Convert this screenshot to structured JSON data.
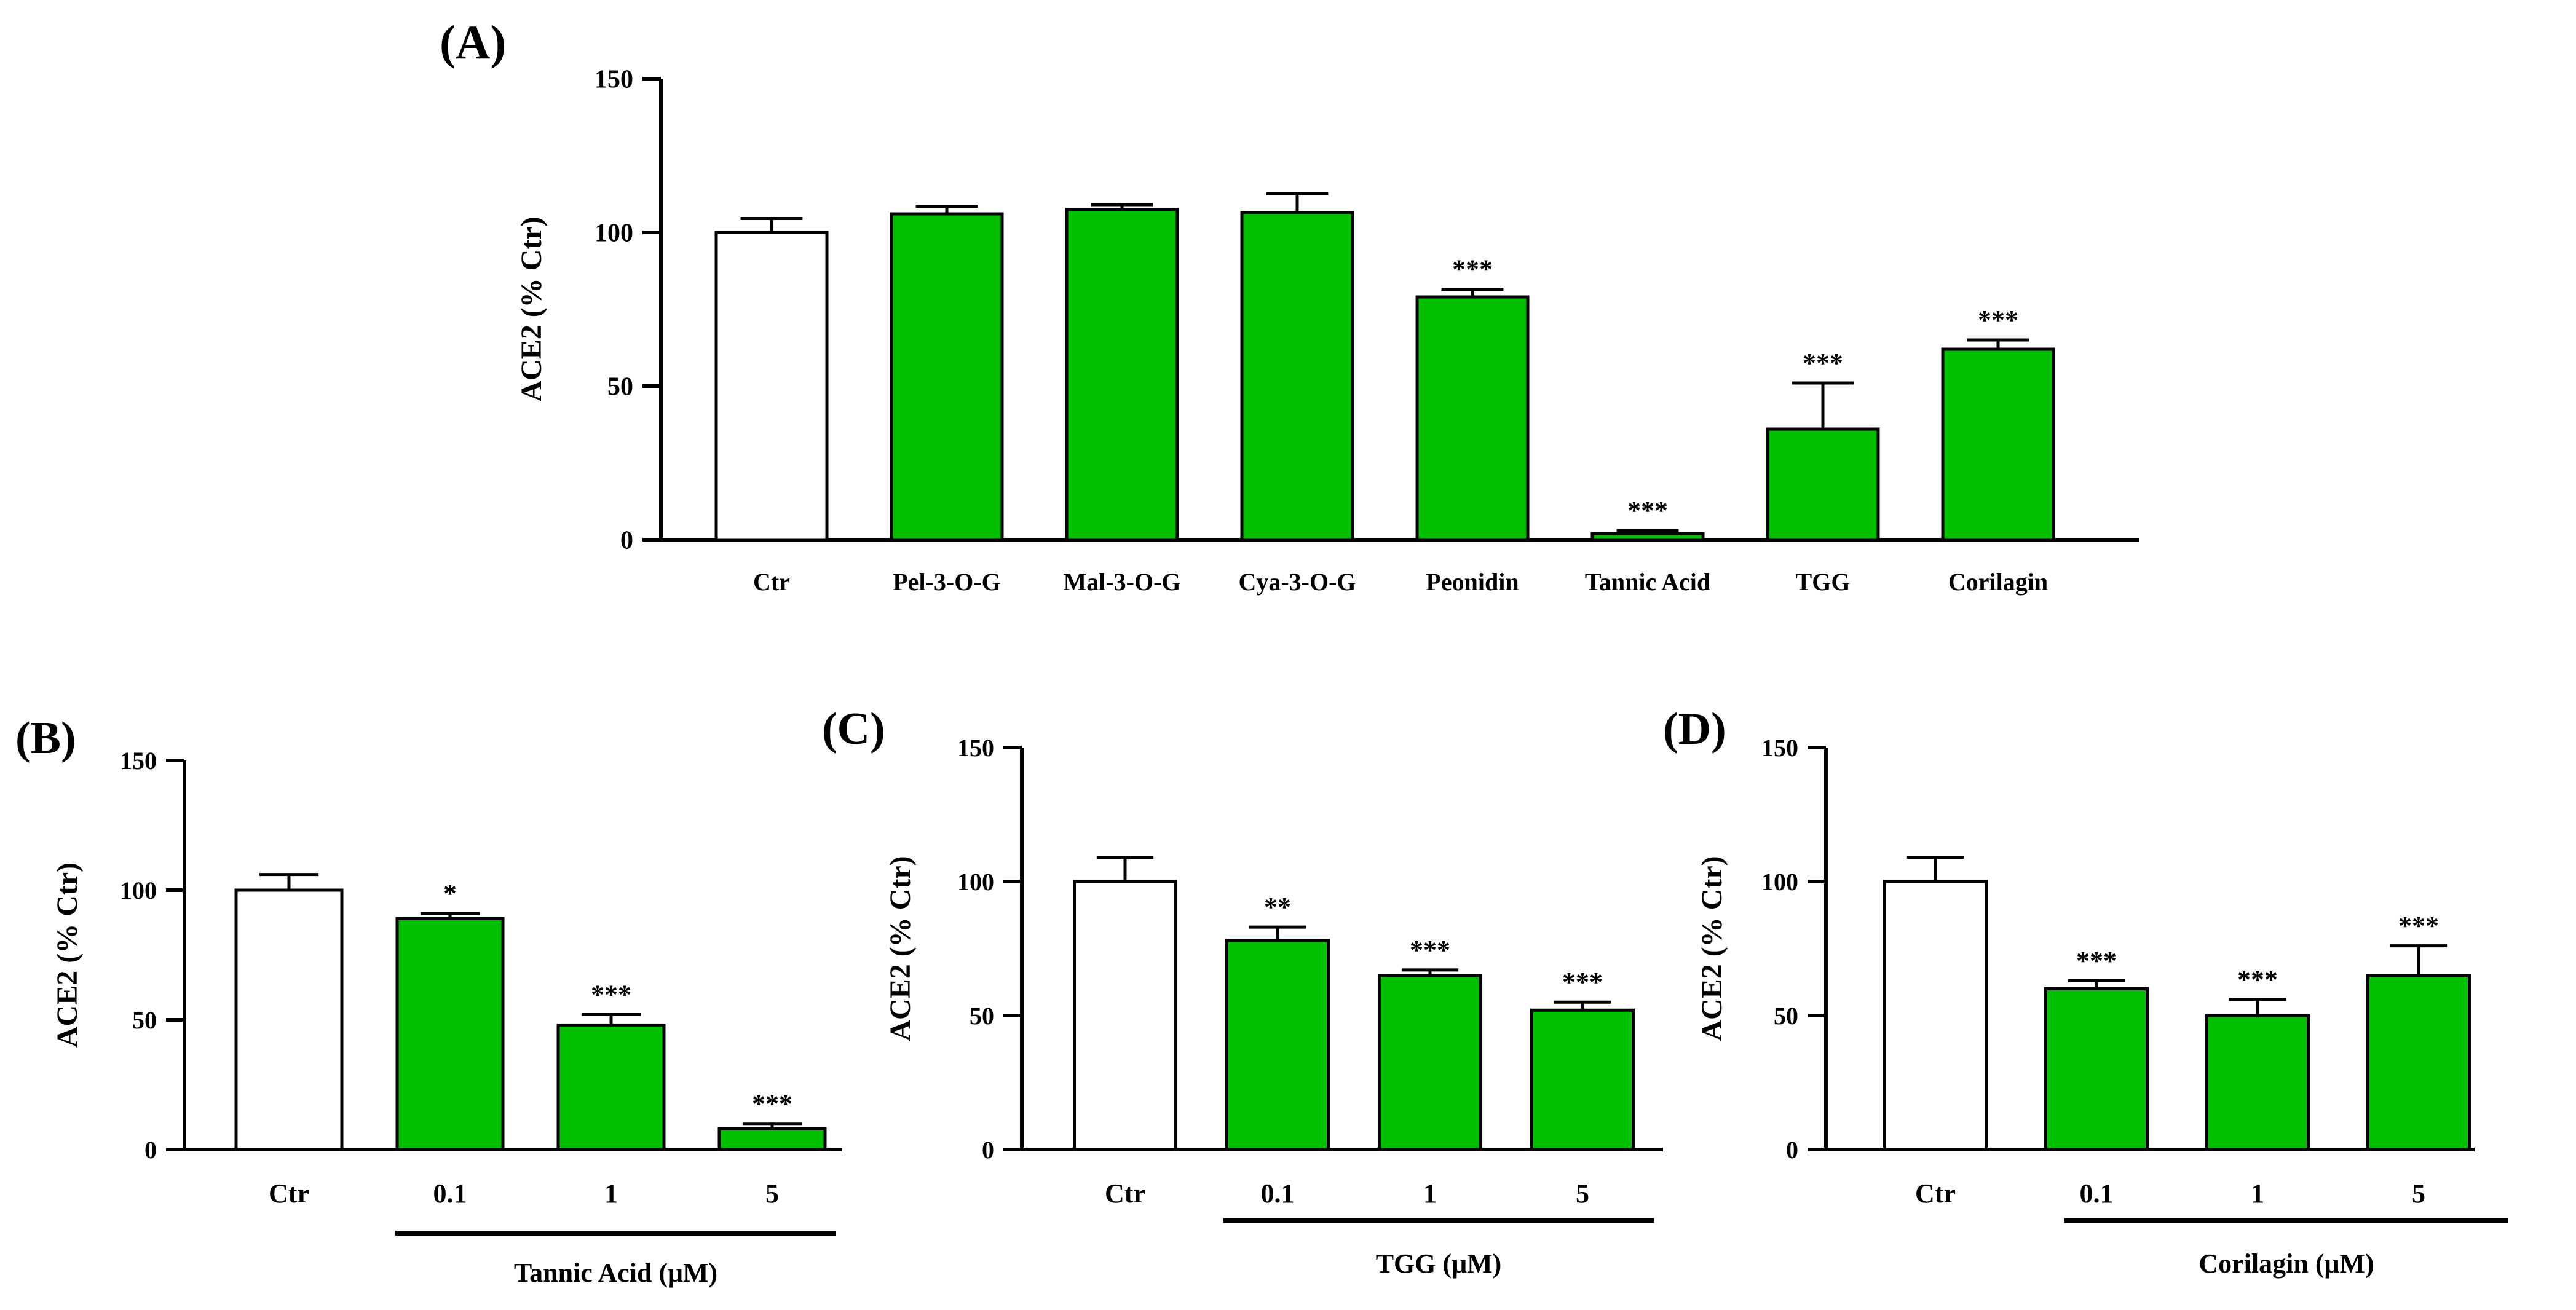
{
  "colors": {
    "control": "#ffffff",
    "treatment": "#00c000",
    "stroke": "#000000"
  },
  "chart_data": [
    {
      "panel": "A",
      "panel_label": "(A)",
      "type": "bar",
      "ylabel": "ACE2 (% Ctr)",
      "ylim": [
        0,
        150
      ],
      "yticks": [
        0,
        50,
        100,
        150
      ],
      "grid": false,
      "categories": [
        "Ctr",
        "Pel-3-O-G",
        "Mal-3-O-G",
        "Cya-3-O-G",
        "Peonidin",
        "Tannic Acid",
        "TGG",
        "Corilagin"
      ],
      "values": [
        100,
        106,
        107.5,
        106.5,
        79,
        2,
        36,
        62
      ],
      "errors": [
        4.5,
        2.5,
        1.5,
        6,
        2.5,
        1,
        15,
        3
      ],
      "significance": [
        "",
        "",
        "",
        "",
        "***",
        "***",
        "***",
        "***"
      ],
      "group_label": ""
    },
    {
      "panel": "B",
      "panel_label": "(B)",
      "type": "bar",
      "ylabel": "ACE2 (% Ctr)",
      "ylim": [
        0,
        150
      ],
      "yticks": [
        0,
        50,
        100,
        150
      ],
      "grid": false,
      "categories": [
        "Ctr",
        "0.1",
        "1",
        "5"
      ],
      "values": [
        100,
        89,
        48,
        8
      ],
      "errors": [
        6,
        2,
        4,
        2
      ],
      "significance": [
        "",
        "*",
        "***",
        "***"
      ],
      "group_label": "Tannic Acid (μM)"
    },
    {
      "panel": "C",
      "panel_label": "(C)",
      "type": "bar",
      "ylabel": "ACE2 (% Ctr)",
      "ylim": [
        0,
        150
      ],
      "yticks": [
        0,
        50,
        100,
        150
      ],
      "grid": false,
      "categories": [
        "Ctr",
        "0.1",
        "1",
        "5"
      ],
      "values": [
        100,
        78,
        65,
        52
      ],
      "errors": [
        9,
        5,
        2,
        3
      ],
      "significance": [
        "",
        "**",
        "***",
        "***"
      ],
      "group_label": "TGG (μM)"
    },
    {
      "panel": "D",
      "panel_label": "(D)",
      "type": "bar",
      "ylabel": "ACE2 (% Ctr)",
      "ylim": [
        0,
        150
      ],
      "yticks": [
        0,
        50,
        100,
        150
      ],
      "grid": false,
      "categories": [
        "Ctr",
        "0.1",
        "1",
        "5"
      ],
      "values": [
        100,
        60,
        50,
        65
      ],
      "errors": [
        9,
        3,
        6,
        11
      ],
      "significance": [
        "",
        "***",
        "***",
        "***"
      ],
      "group_label": "Corilagin (μM)"
    }
  ]
}
